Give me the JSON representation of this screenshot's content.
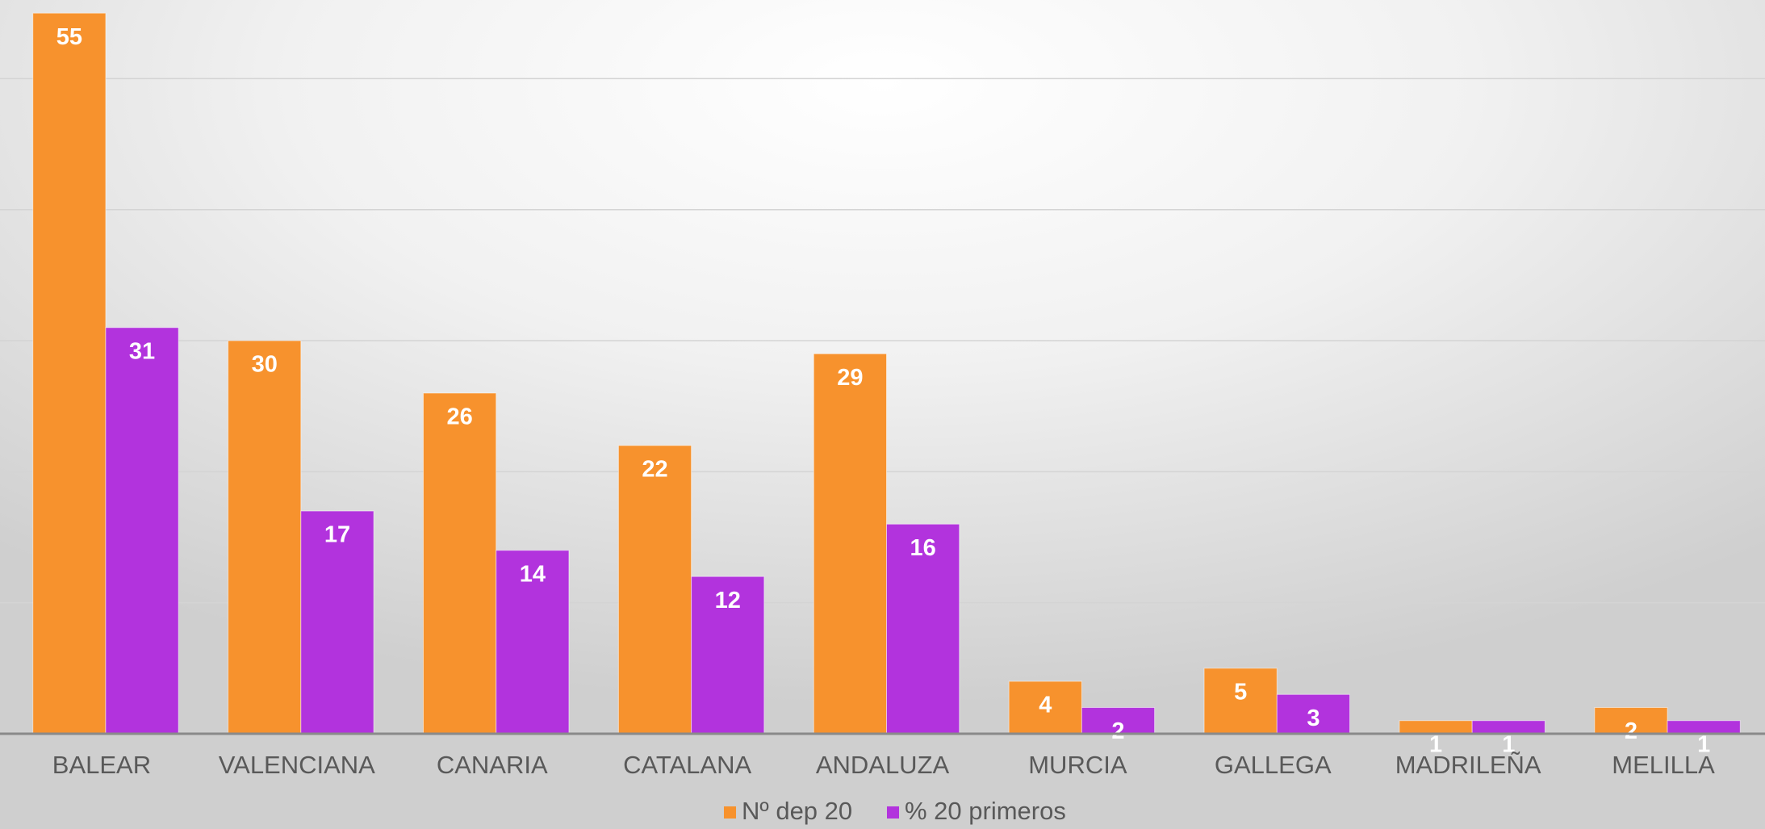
{
  "chart_data": {
    "type": "bar",
    "categories": [
      "BALEAR",
      "VALENCIANA",
      "CANARIA",
      "CATALANA",
      "ANDALUZA",
      "MURCIA",
      "GALLEGA",
      "MADRILEÑA",
      "MELILLA"
    ],
    "series": [
      {
        "name": "Nº dep 20",
        "color": "#f7922d",
        "values": [
          55,
          30,
          26,
          22,
          29,
          4,
          5,
          1,
          2
        ]
      },
      {
        "name": "% 20 primeros",
        "color": "#b233dd",
        "values": [
          31,
          17,
          14,
          12,
          16,
          2,
          3,
          1,
          1
        ]
      }
    ],
    "ylim": [
      0,
      56
    ],
    "yticks": [
      0,
      10,
      20,
      30,
      40,
      50
    ],
    "grid": true,
    "legend": "bottom"
  }
}
